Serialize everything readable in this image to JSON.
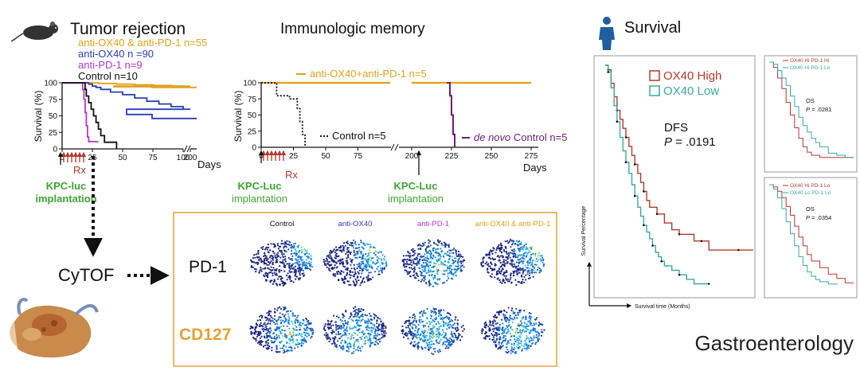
{
  "colors": {
    "orange": "#E0A21B",
    "blue": "#2A3FB5",
    "purple": "#B636CC",
    "black": "#111111",
    "dark_purple": "#6B1F73",
    "green": "#3FA535",
    "red": "#B33A2D",
    "teal": "#3AA8A4",
    "frame_orange": "#E6A23C",
    "cd127_orange": "#E3A238",
    "rx_red": "#B2392A"
  },
  "tumor_rejection": {
    "title": "Tumor rejection",
    "icon": "mouse-icon",
    "legend": [
      {
        "text": "anti-OX40 & anti-PD-1 n=55",
        "color_key": "orange"
      },
      {
        "text": "anti-OX40 n =90",
        "color_key": "blue"
      },
      {
        "text": "anti-PD-1 n=9",
        "color_key": "purple"
      },
      {
        "text": "Control  n=10",
        "color_key": "black"
      }
    ],
    "rx_label": "Rx",
    "implant_line1": "KPC-luc",
    "implant_line2": "implantation"
  },
  "memory": {
    "title": "Immunologic  memory",
    "label_treated": "anti-OX40+anti-PD-1 n=5",
    "label_control": "Control  n=5",
    "label_denovo_italic": "de novo",
    "label_denovo_rest": " Control n=5",
    "rx_label": "Rx",
    "implant_a_line1": "KPC-Luc",
    "implant_a_line2": "implantation",
    "implant_b_line1": "KPC-Luc",
    "implant_b_line2": "implantation"
  },
  "cytof": {
    "label": "CyTOF",
    "row_labels": [
      "PD-1",
      "CD127"
    ],
    "column_labels": [
      {
        "text": "Control",
        "color_key": "black"
      },
      {
        "text": "anti-OX40",
        "color_key": "blue"
      },
      {
        "text": "anti-PD-1",
        "color_key": "purple"
      },
      {
        "text": "anti-OX40 & anti-PD-1",
        "color_key": "orange"
      }
    ],
    "organ_icon": "pancreas-icon"
  },
  "survival": {
    "title": "Survival",
    "icon": "person-icon",
    "legend_high": "OX40 High",
    "legend_low": "OX40 Low",
    "stat_label": "DFS",
    "p_label": "P",
    "p_value": " = .0191",
    "ylabel": "Survival Percentage",
    "xlabel": "Survival time (Months)",
    "small_top": {
      "legend_a": "OX40 Hi PD-1 Hi",
      "legend_b": "OX40 Hi PD-1 Lo",
      "stat": "OS",
      "p_value": " = .0281"
    },
    "small_bottom": {
      "legend_a": "OX40 Hi PD-1 Lo",
      "legend_b": "OX40 Lo PD-1 Lo",
      "stat": "OS",
      "p_value": " = .0354"
    }
  },
  "journal": "Gastroenterology",
  "chart_data": [
    {
      "type": "line",
      "title": "Tumor rejection",
      "xlabel": "Days",
      "ylabel": "Survival (%)",
      "xlim": [
        0,
        205
      ],
      "ylim": [
        0,
        100
      ],
      "x_ticks": [
        "0",
        "25",
        "50",
        "75",
        "100",
        "200"
      ],
      "y_ticks": [
        "0",
        "25",
        "50",
        "75",
        "100"
      ],
      "axis_break_after": 100,
      "series": [
        {
          "name": "anti-OX40 & anti-PD-1 n=55",
          "color_key": "orange",
          "points": [
            [
              0,
              100
            ],
            [
              20,
              100
            ],
            [
              30,
              99
            ],
            [
              45,
              98
            ],
            [
              60,
              97
            ],
            [
              75,
              96
            ],
            [
              90,
              95
            ],
            [
              100,
              95
            ],
            [
              140,
              94
            ],
            [
              170,
              93
            ],
            [
              205,
              93
            ]
          ]
        },
        {
          "name": "anti-OX40 n =90",
          "color_key": "blue",
          "points": [
            [
              0,
              100
            ],
            [
              22,
              98
            ],
            [
              25,
              95
            ],
            [
              28,
              93
            ],
            [
              32,
              90
            ],
            [
              40,
              86
            ],
            [
              50,
              82
            ],
            [
              60,
              77
            ],
            [
              70,
              72
            ],
            [
              80,
              68
            ],
            [
              90,
              64
            ],
            [
              100,
              60
            ],
            [
              150,
              52
            ],
            [
              170,
              46
            ],
            [
              205,
              46
            ]
          ]
        },
        {
          "name": "anti-PD-1 n=9",
          "color_key": "purple",
          "points": [
            [
              0,
              100
            ],
            [
              16,
              100
            ],
            [
              17,
              90
            ],
            [
              18,
              75
            ],
            [
              19,
              55
            ],
            [
              20,
              35
            ],
            [
              21,
              18
            ],
            [
              22,
              11
            ],
            [
              30,
              11
            ]
          ]
        },
        {
          "name": "Control  n=10",
          "color_key": "black",
          "points": [
            [
              0,
              100
            ],
            [
              18,
              100
            ],
            [
              19,
              90
            ],
            [
              20,
              80
            ],
            [
              22,
              70
            ],
            [
              24,
              60
            ],
            [
              26,
              50
            ],
            [
              28,
              40
            ],
            [
              30,
              30
            ],
            [
              32,
              20
            ],
            [
              35,
              10
            ],
            [
              40,
              10
            ],
            [
              45,
              0
            ]
          ]
        }
      ]
    },
    {
      "type": "line",
      "title": "Immunologic  memory",
      "xlabel": "Days",
      "ylabel": "Survival (%)",
      "xlim": [
        0,
        275
      ],
      "ylim": [
        0,
        100
      ],
      "x_ticks": [
        "0",
        "25",
        "50",
        "75",
        "200",
        "225",
        "250",
        "275"
      ],
      "y_ticks": [
        "0",
        "25",
        "50",
        "75",
        "100"
      ],
      "axis_break_after": 100,
      "series": [
        {
          "name": "anti-OX40+anti-PD-1 n=5",
          "color_key": "orange",
          "points": [
            [
              0,
              100
            ],
            [
              100,
              100
            ],
            [
              200,
              100
            ],
            [
              275,
              100
            ]
          ]
        },
        {
          "name": "Control  n=5",
          "color_key": "black",
          "points": [
            [
              0,
              100
            ],
            [
              10,
              100
            ],
            [
              12,
              80
            ],
            [
              20,
              80
            ],
            [
              22,
              75
            ],
            [
              28,
              60
            ],
            [
              30,
              40
            ],
            [
              32,
              20
            ],
            [
              34,
              0
            ]
          ]
        },
        {
          "name": "de novo Control n=5",
          "color_key": "dark_purple",
          "points": [
            [
              222,
              100
            ],
            [
              224,
              80
            ],
            [
              225,
              50
            ],
            [
              226,
              20
            ],
            [
              227,
              0
            ]
          ]
        }
      ]
    },
    {
      "type": "line",
      "title": "Survival",
      "xlabel": "Survival time (Months)",
      "ylabel": "Survival Percentage",
      "xlim": [
        0,
        100
      ],
      "ylim": [
        0,
        100
      ],
      "annotation": "DFS P = .0191",
      "series": [
        {
          "name": "OX40 High",
          "color_key": "red",
          "points": [
            [
              0,
              100
            ],
            [
              2,
              98
            ],
            [
              4,
              92
            ],
            [
              6,
              86
            ],
            [
              8,
              80
            ],
            [
              10,
              76
            ],
            [
              12,
              72
            ],
            [
              14,
              68
            ],
            [
              16,
              64
            ],
            [
              18,
              60
            ],
            [
              20,
              56
            ],
            [
              22,
              52
            ],
            [
              24,
              48
            ],
            [
              26,
              44
            ],
            [
              28,
              40
            ],
            [
              30,
              37
            ],
            [
              35,
              34
            ],
            [
              40,
              30
            ],
            [
              45,
              27
            ],
            [
              50,
              25
            ],
            [
              55,
              25
            ],
            [
              60,
              22
            ],
            [
              65,
              22
            ],
            [
              70,
              18
            ],
            [
              80,
              18
            ],
            [
              90,
              18
            ],
            [
              100,
              18
            ]
          ]
        },
        {
          "name": "OX40 Low",
          "color_key": "teal",
          "points": [
            [
              0,
              100
            ],
            [
              2,
              97
            ],
            [
              4,
              90
            ],
            [
              6,
              82
            ],
            [
              8,
              75
            ],
            [
              10,
              68
            ],
            [
              12,
              62
            ],
            [
              14,
              57
            ],
            [
              16,
              52
            ],
            [
              18,
              47
            ],
            [
              20,
              42
            ],
            [
              22,
              37
            ],
            [
              24,
              33
            ],
            [
              26,
              29
            ],
            [
              28,
              26
            ],
            [
              30,
              23
            ],
            [
              32,
              20
            ],
            [
              34,
              17
            ],
            [
              36,
              15
            ],
            [
              38,
              13
            ],
            [
              40,
              11
            ],
            [
              45,
              9
            ],
            [
              50,
              7
            ],
            [
              55,
              5
            ],
            [
              60,
              3
            ],
            [
              70,
              3
            ]
          ]
        }
      ]
    },
    {
      "type": "line",
      "annotation": "OS P = .0281",
      "series": [
        {
          "name": "OX40 Hi PD-1 Hi",
          "color_key": "red",
          "points": [
            [
              0,
              100
            ],
            [
              5,
              95
            ],
            [
              10,
              85
            ],
            [
              15,
              75
            ],
            [
              20,
              62
            ],
            [
              25,
              50
            ],
            [
              30,
              38
            ],
            [
              35,
              28
            ],
            [
              40,
              20
            ],
            [
              45,
              15
            ],
            [
              50,
              12
            ],
            [
              60,
              10
            ],
            [
              80,
              10
            ],
            [
              100,
              10
            ]
          ]
        },
        {
          "name": "OX40 Hi PD-1 Lo",
          "color_key": "teal",
          "points": [
            [
              0,
              100
            ],
            [
              5,
              98
            ],
            [
              10,
              92
            ],
            [
              15,
              85
            ],
            [
              20,
              78
            ],
            [
              25,
              68
            ],
            [
              30,
              58
            ],
            [
              35,
              48
            ],
            [
              40,
              40
            ],
            [
              45,
              34
            ],
            [
              50,
              28
            ],
            [
              55,
              24
            ],
            [
              60,
              20
            ],
            [
              70,
              14
            ],
            [
              80,
              12
            ],
            [
              90,
              10
            ],
            [
              100,
              10
            ]
          ]
        }
      ]
    },
    {
      "type": "line",
      "annotation": "OS P = .0354",
      "series": [
        {
          "name": "OX40 Hi PD-1 Lo",
          "color_key": "red",
          "points": [
            [
              0,
              100
            ],
            [
              5,
              98
            ],
            [
              10,
              94
            ],
            [
              15,
              88
            ],
            [
              20,
              80
            ],
            [
              25,
              72
            ],
            [
              30,
              62
            ],
            [
              35,
              52
            ],
            [
              40,
              44
            ],
            [
              45,
              36
            ],
            [
              50,
              30
            ],
            [
              60,
              24
            ],
            [
              70,
              18
            ],
            [
              80,
              14
            ],
            [
              90,
              10
            ],
            [
              100,
              10
            ]
          ]
        },
        {
          "name": "OX40 Lo PD-1 Lo",
          "color_key": "teal",
          "points": [
            [
              0,
              100
            ],
            [
              5,
              96
            ],
            [
              10,
              88
            ],
            [
              15,
              78
            ],
            [
              20,
              66
            ],
            [
              25,
              55
            ],
            [
              30,
              44
            ],
            [
              35,
              34
            ],
            [
              40,
              26
            ],
            [
              45,
              20
            ],
            [
              50,
              16
            ],
            [
              55,
              13
            ],
            [
              60,
              11
            ],
            [
              70,
              9
            ],
            [
              80,
              8
            ]
          ]
        }
      ]
    }
  ]
}
